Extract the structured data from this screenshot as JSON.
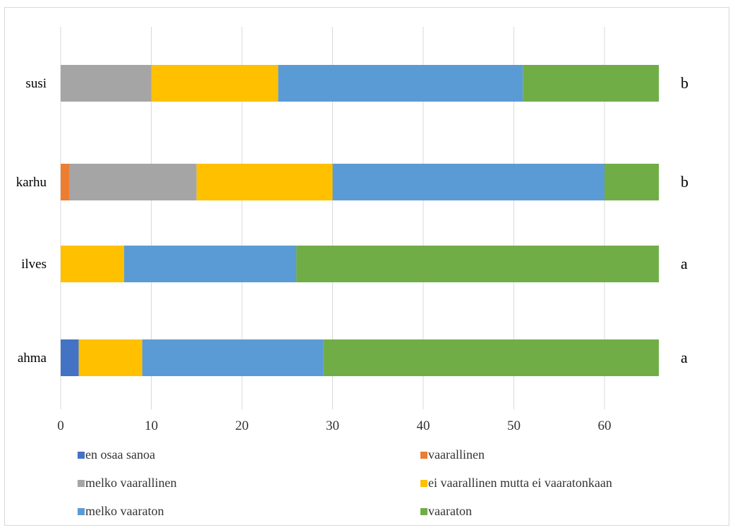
{
  "chart_data": {
    "type": "bar",
    "orientation": "horizontal",
    "stacked": true,
    "categories": [
      "susi",
      "karhu",
      "ilves",
      "ahma"
    ],
    "group_labels": [
      "b",
      "b",
      "a",
      "a"
    ],
    "series": [
      {
        "name": "en osaa sanoa",
        "color": "#4472C4",
        "values": [
          0,
          0,
          0,
          2
        ]
      },
      {
        "name": "vaarallinen",
        "color": "#ED7D31",
        "values": [
          0,
          1,
          0,
          0
        ]
      },
      {
        "name": "melko vaarallinen",
        "color": "#A5A5A5",
        "values": [
          10,
          14,
          0,
          0
        ]
      },
      {
        "name": "ei vaarallinen mutta ei vaaratonkaan",
        "color": "#FFC000",
        "values": [
          14,
          15,
          7,
          7
        ]
      },
      {
        "name": "melko vaaraton",
        "color": "#5B9BD5",
        "values": [
          27,
          30,
          19,
          20
        ]
      },
      {
        "name": "vaaraton",
        "color": "#70AD47",
        "values": [
          15,
          6,
          40,
          37
        ]
      }
    ],
    "xlim": [
      0,
      70
    ],
    "xticks": [
      "0",
      "10",
      "20",
      "30",
      "40",
      "50",
      "60"
    ],
    "xlabel": "",
    "ylabel": "",
    "title": "",
    "grid": "vertical",
    "legend": "bottom"
  }
}
